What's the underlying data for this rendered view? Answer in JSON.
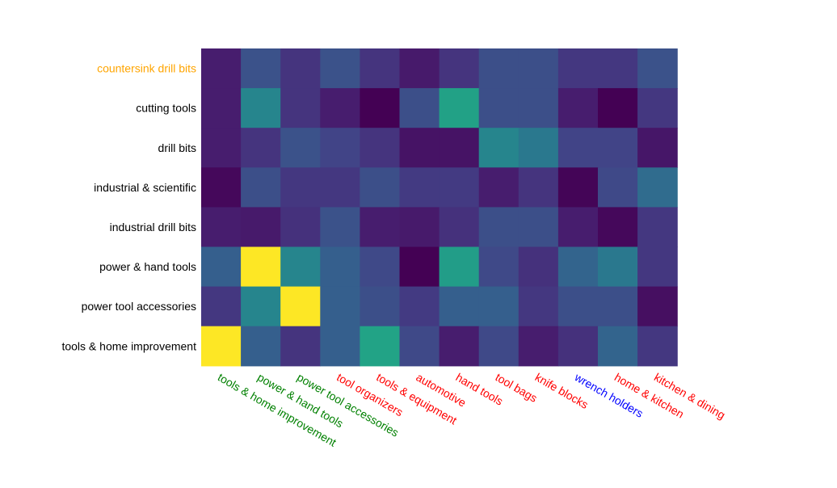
{
  "chart_data": {
    "type": "heatmap",
    "title": "",
    "xlabel": "",
    "ylabel": "",
    "colormap": "viridis",
    "value_range": [
      0,
      1
    ],
    "rows": [
      {
        "label": "countersink drill bits",
        "color": "#ffa500"
      },
      {
        "label": "cutting tools",
        "color": "#000000"
      },
      {
        "label": "drill bits",
        "color": "#000000"
      },
      {
        "label": "industrial & scientific",
        "color": "#000000"
      },
      {
        "label": "industrial drill bits",
        "color": "#000000"
      },
      {
        "label": "power & hand tools",
        "color": "#000000"
      },
      {
        "label": "power tool accessories",
        "color": "#000000"
      },
      {
        "label": "tools & home improvement",
        "color": "#000000"
      }
    ],
    "columns": [
      {
        "label": "tools & home improvement",
        "color": "#008000"
      },
      {
        "label": "power & hand tools",
        "color": "#008000"
      },
      {
        "label": "power tool accessories",
        "color": "#008000"
      },
      {
        "label": "tool organizers",
        "color": "#ff0000"
      },
      {
        "label": "tools & equipment",
        "color": "#ff0000"
      },
      {
        "label": "automotive",
        "color": "#ff0000"
      },
      {
        "label": "hand tools",
        "color": "#ff0000"
      },
      {
        "label": "tool bags",
        "color": "#ff0000"
      },
      {
        "label": "knife blocks",
        "color": "#ff0000"
      },
      {
        "label": "wrench holders",
        "color": "#0000ff"
      },
      {
        "label": "home & kitchen",
        "color": "#ff0000"
      },
      {
        "label": "kitchen & dining",
        "color": "#ff0000"
      }
    ],
    "values": [
      [
        0.08,
        0.25,
        0.15,
        0.25,
        0.15,
        0.07,
        0.15,
        0.24,
        0.24,
        0.16,
        0.16,
        0.25
      ],
      [
        0.08,
        0.45,
        0.15,
        0.08,
        0.0,
        0.24,
        0.57,
        0.24,
        0.24,
        0.08,
        0.0,
        0.16
      ],
      [
        0.08,
        0.15,
        0.25,
        0.2,
        0.15,
        0.05,
        0.05,
        0.45,
        0.4,
        0.2,
        0.2,
        0.06
      ],
      [
        0.02,
        0.24,
        0.16,
        0.16,
        0.24,
        0.17,
        0.17,
        0.08,
        0.15,
        0.01,
        0.22,
        0.35
      ],
      [
        0.08,
        0.07,
        0.14,
        0.25,
        0.08,
        0.07,
        0.14,
        0.24,
        0.24,
        0.08,
        0.02,
        0.16
      ],
      [
        0.3,
        1.0,
        0.45,
        0.3,
        0.22,
        0.0,
        0.55,
        0.22,
        0.14,
        0.32,
        0.4,
        0.16
      ],
      [
        0.16,
        0.45,
        1.0,
        0.3,
        0.24,
        0.17,
        0.3,
        0.3,
        0.16,
        0.24,
        0.24,
        0.04
      ],
      [
        1.0,
        0.3,
        0.15,
        0.3,
        0.58,
        0.22,
        0.08,
        0.22,
        0.08,
        0.14,
        0.32,
        0.16
      ]
    ]
  }
}
